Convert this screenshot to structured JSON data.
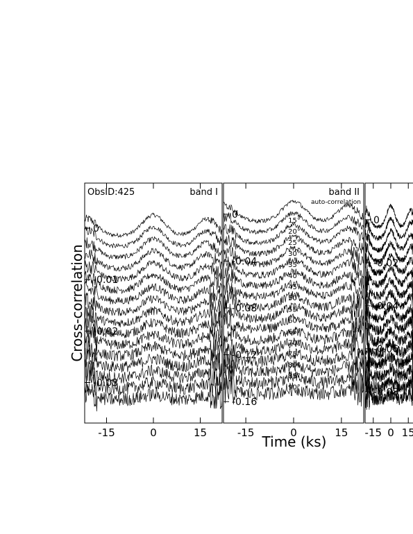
{
  "chart_data": {
    "type": "line",
    "ylabel": "Cross-correlation",
    "xlabel": "Time (ks)",
    "obsid_label": "ObsID:425",
    "xlim": [
      -22,
      22
    ],
    "x_ticks": [
      -15,
      0,
      15
    ],
    "panels": [
      {
        "id": "band-i",
        "title": "band I",
        "subtitle": "",
        "offset_labels": [
          "0",
          "-0.01",
          "-0.02",
          "-0.03"
        ],
        "ylim": [
          -0.036,
          0.005
        ],
        "curve_count": 16,
        "curve_step": -0.0022,
        "peak_positions_ks": [
          -21,
          0,
          17
        ],
        "angle_labels": []
      },
      {
        "id": "band-ii",
        "title": "band II",
        "subtitle": "auto-correlation",
        "offset_labels": [
          "0",
          "-0.04",
          "-0.08",
          "-0.12",
          "-0.16"
        ],
        "ylim": [
          -0.17,
          0.01
        ],
        "curve_count": 17,
        "curve_step": -0.0095,
        "peak_positions_ks": [
          -21,
          0,
          17
        ],
        "angle_labels": [
          "15°",
          "20°",
          "25°",
          "30°",
          "35°",
          "40°",
          "45°",
          "50°",
          "55°",
          "60°",
          "65°",
          "70°",
          "75°",
          "80°",
          "85°",
          "90°"
        ]
      },
      {
        "id": "band-iii",
        "title": "",
        "subtitle": "",
        "offset_labels": [
          "0",
          "-0.02",
          "-0.04",
          "-0.06",
          "-0.08"
        ],
        "ylim": [
          -0.09,
          0.008
        ],
        "curve_count": 16,
        "curve_step": -0.0055,
        "peak_positions_ks": [
          -21,
          0,
          17
        ],
        "angle_labels": []
      }
    ]
  }
}
